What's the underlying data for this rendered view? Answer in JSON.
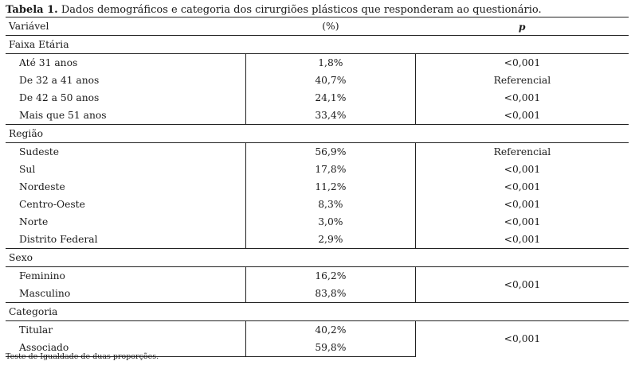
{
  "caption": {
    "label": "Tabela 1.",
    "text": "Dados demográficos e categoria dos cirurgiões plásticos que responderam ao questionário."
  },
  "columns": [
    "Variável",
    "(%)",
    "p"
  ],
  "sections": {
    "faixa": {
      "title": "Faixa Etária",
      "rows": [
        {
          "label": "Até 31 anos",
          "pct": "1,8%",
          "p": "<0,001"
        },
        {
          "label": "De 32 a 41 anos",
          "pct": "40,7%",
          "p": "Referencial"
        },
        {
          "label": "De 42 a 50 anos",
          "pct": "24,1%",
          "p": "<0,001"
        },
        {
          "label": "Mais que 51 anos",
          "pct": "33,4%",
          "p": "<0,001"
        }
      ]
    },
    "regiao": {
      "title": "Região",
      "rows": [
        {
          "label": "Sudeste",
          "pct": "56,9%",
          "p": "Referencial"
        },
        {
          "label": "Sul",
          "pct": "17,8%",
          "p": "<0,001"
        },
        {
          "label": "Nordeste",
          "pct": "11,2%",
          "p": "<0,001"
        },
        {
          "label": "Centro-Oeste",
          "pct": "8,3%",
          "p": "<0,001"
        },
        {
          "label": "Norte",
          "pct": "3,0%",
          "p": "<0,001"
        },
        {
          "label": "Distrito Federal",
          "pct": "2,9%",
          "p": "<0,001"
        }
      ]
    },
    "sexo": {
      "title": "Sexo",
      "rows": [
        {
          "label": "Feminino",
          "pct": "16,2%"
        },
        {
          "label": "Masculino",
          "pct": "83,8%"
        }
      ],
      "p": "<0,001"
    },
    "categoria": {
      "title": "Categoria",
      "rows": [
        {
          "label": "Titular",
          "pct": "40,2%"
        },
        {
          "label": "Associado",
          "pct": "59,8%"
        }
      ],
      "p": "<0,001"
    }
  },
  "footnote": "Teste de Igualdade de duas proporções."
}
